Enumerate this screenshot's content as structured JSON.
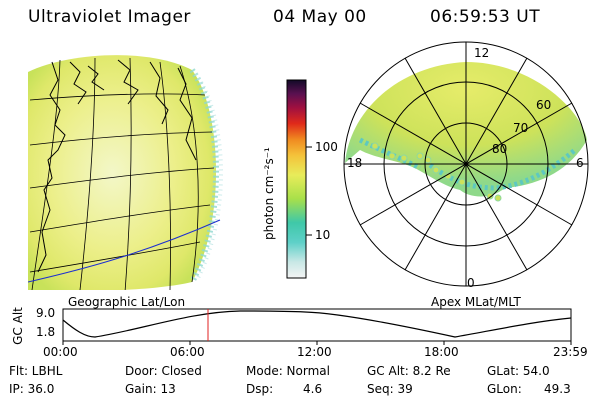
{
  "header": {
    "instrument": "Ultraviolet Imager",
    "date": "04 May 00",
    "time": "06:59:53 UT"
  },
  "left_panel": {
    "caption": "Geographic Lat/Lon"
  },
  "right_panel": {
    "caption": "Apex MLat/MLT",
    "mlt_labels": {
      "top": "12",
      "left": "18",
      "right": "6",
      "bottom": "0"
    },
    "lat_labels": [
      "60",
      "70",
      "80"
    ]
  },
  "colorbar": {
    "unit": "photon cm⁻²s⁻¹",
    "ticks": [
      "100",
      "10"
    ],
    "scale": "log"
  },
  "timeline": {
    "axis_title": "GC Alt",
    "y_ticks": [
      "9.0",
      "1.8"
    ],
    "x_ticks": [
      "00:00",
      "06:00",
      "12:00",
      "18:00",
      "23:59"
    ],
    "current_time_marker": "06:59:53"
  },
  "info": {
    "flt": "Flt: LBHL",
    "ip": "IP: 36.0",
    "door": "Door: Closed",
    "gain": "Gain: 13",
    "mode": "Mode: Normal",
    "dsp_label": "Dsp:",
    "dsp_value": "4.6",
    "gcalt": "GC Alt: 8.2 Re",
    "seq": "Seq: 39",
    "glat": "GLat: 54.0",
    "glon_label": "GLon:",
    "glon_value": "49.3"
  }
}
